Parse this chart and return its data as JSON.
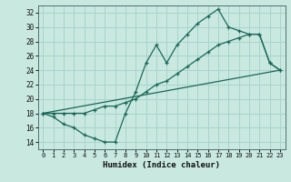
{
  "xlabel": "Humidex (Indice chaleur)",
  "xlim": [
    -0.5,
    23.5
  ],
  "ylim": [
    13.0,
    33.0
  ],
  "yticks": [
    14,
    16,
    18,
    20,
    22,
    24,
    26,
    28,
    30,
    32
  ],
  "xticks": [
    0,
    1,
    2,
    3,
    4,
    5,
    6,
    7,
    8,
    9,
    10,
    11,
    12,
    13,
    14,
    15,
    16,
    17,
    18,
    19,
    20,
    21,
    22,
    23
  ],
  "background_color": "#c8e8e0",
  "grid_color": "#a8d4cc",
  "line_color": "#1a6858",
  "line1_x": [
    0,
    1,
    2,
    3,
    4,
    5,
    6,
    7,
    8,
    9,
    10,
    11,
    12,
    13,
    14,
    15,
    16,
    17,
    18,
    19,
    20,
    21,
    22,
    23
  ],
  "line1_y": [
    18,
    17.5,
    16.5,
    16,
    15,
    14.5,
    14,
    14,
    18,
    21,
    25,
    27.5,
    25,
    27.5,
    29,
    30.5,
    31.5,
    32.5,
    30,
    29.5,
    29,
    29,
    25,
    24
  ],
  "line2_x": [
    0,
    1,
    2,
    3,
    4,
    5,
    6,
    7,
    8,
    9,
    10,
    11,
    12,
    13,
    14,
    15,
    16,
    17,
    18,
    19,
    20,
    21,
    22,
    23
  ],
  "line2_y": [
    18,
    18,
    18,
    18,
    18,
    18.5,
    19,
    19,
    19.5,
    20,
    21,
    22,
    22.5,
    23.5,
    24.5,
    25.5,
    26.5,
    27.5,
    28,
    28.5,
    29,
    29,
    25,
    24
  ],
  "line3_x": [
    0,
    23
  ],
  "line3_y": [
    18,
    24
  ]
}
